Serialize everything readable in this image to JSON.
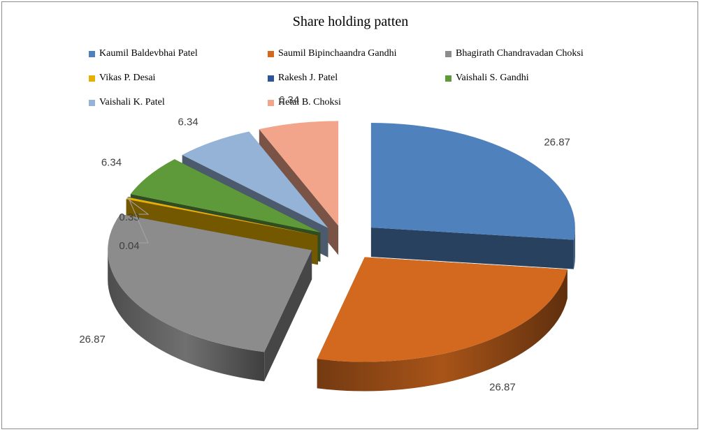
{
  "chart_data": {
    "type": "pie",
    "title": "Share holding patten",
    "legend_position": "top",
    "categories": [
      "Kaumil Baldevbhai Patel",
      "Saumil Bipinchaandra Gandhi",
      "Bhagirath Chandravadan Choksi",
      "Vikas P. Desai",
      "Rakesh J. Patel",
      "Vaishali S. Gandhi",
      "Vaishali K. Patel",
      "Hetal B. Choksi"
    ],
    "values": [
      26.87,
      26.87,
      26.87,
      0.33,
      0.04,
      6.34,
      6.34,
      6.34
    ],
    "value_labels": [
      "26.87",
      "26.87",
      "26.87",
      "0.33",
      "0.04",
      "6.34",
      "6.34",
      "6.34"
    ],
    "colors": [
      "#4f81bd",
      "#d2691e",
      "#8c8c8c",
      "#e6b000",
      "#2e5597",
      "#5f9a3a",
      "#95b3d7",
      "#f2a58a"
    ],
    "style": "3d exploded"
  }
}
